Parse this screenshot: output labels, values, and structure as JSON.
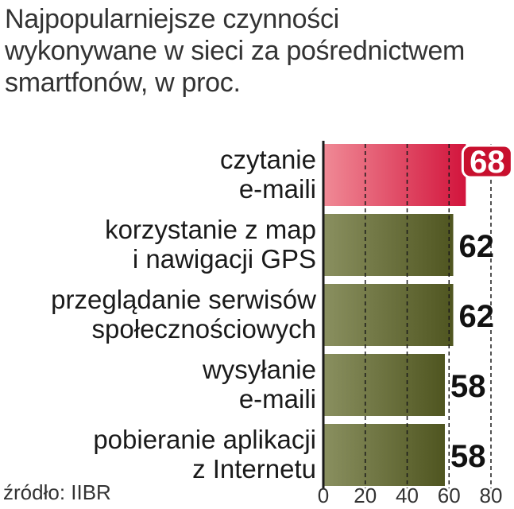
{
  "title_lines": [
    "Najpopularniejsze czynności",
    "wykonywane w sieci za pośrednictwem",
    "smartfonów, w proc."
  ],
  "source": "źródło: IIBR",
  "colors": {
    "bar": "#5a6028",
    "highlight": "#d2143c",
    "badge": "#c8102e"
  },
  "chart_data": {
    "type": "bar",
    "orientation": "horizontal",
    "categories": [
      [
        "czytanie",
        "e-maili"
      ],
      [
        "korzystanie z map",
        "i nawigacji GPS"
      ],
      [
        "przeglądanie serwisów",
        "społecznościowych"
      ],
      [
        "wysyłanie",
        "e-maili"
      ],
      [
        "pobieranie aplikacji",
        "z Internetu"
      ]
    ],
    "values": [
      68,
      62,
      62,
      58,
      58
    ],
    "value_labels": [
      "68",
      "62",
      "62",
      "58",
      "58"
    ],
    "highlighted_index": 0,
    "xlim": [
      0,
      80
    ],
    "x_ticks": [
      0,
      20,
      40,
      60,
      80
    ],
    "x_tick_labels": [
      "0",
      "20",
      "40",
      "60",
      "80"
    ],
    "grid": "vertical dashed"
  }
}
